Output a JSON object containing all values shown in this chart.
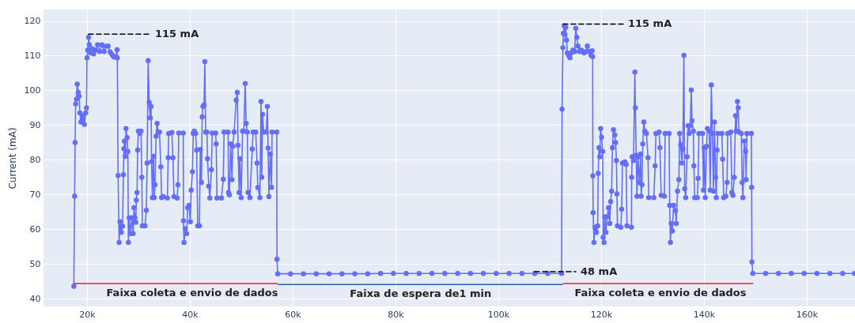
{
  "chart_data": {
    "type": "line",
    "ylabel": "Current (mA)",
    "xlim": [
      11540,
      169390
    ],
    "ylim": [
      37.8,
      123.3
    ],
    "xticks": [
      {
        "value": 20000,
        "label": "20k"
      },
      {
        "value": 40000,
        "label": "40k"
      },
      {
        "value": 60000,
        "label": "60k"
      },
      {
        "value": 80000,
        "label": "80k"
      },
      {
        "value": 100000,
        "label": "100k"
      },
      {
        "value": 120000,
        "label": "120k"
      },
      {
        "value": 140000,
        "label": "140k"
      },
      {
        "value": 160000,
        "label": "160k"
      }
    ],
    "yticks": [
      40,
      50,
      60,
      70,
      80,
      90,
      100,
      110,
      120
    ],
    "grid": true,
    "marker": "circle",
    "line_style": "solid",
    "series": [
      {
        "color": "#636efa",
        "x": [
          17440,
          17590,
          17690,
          17790,
          17950,
          18100,
          18310,
          18460,
          18620,
          18820,
          19080,
          19230,
          19490,
          19740,
          19900,
          20000,
          20150,
          20310,
          20460,
          20670,
          21030,
          21280,
          21640,
          22050,
          22460,
          22920,
          23330,
          23690,
          24100,
          24510,
          24870,
          25230,
          25640,
          25850,
          25900,
          26050,
          26250,
          26410,
          26670,
          26920,
          27080,
          27180,
          27280,
          27440,
          27590,
          27800,
          27950,
          28050,
          28210,
          28460,
          28720,
          28970,
          29130,
          29330,
          29490,
          29590,
          29740,
          29850,
          30000,
          30260,
          30510,
          30670,
          30770,
          31280,
          31540,
          31690,
          31900,
          32100,
          32310,
          32460,
          32560,
          32720,
          32920,
          33080,
          33230,
          33440,
          33640,
          33850,
          34100,
          34360,
          34510,
          34870,
          35640,
          35790,
          35900,
          36510,
          36720,
          36920,
          37540,
          37690,
          37850,
          38720,
          38770,
          38870,
          39130,
          39380,
          39590,
          39850,
          40100,
          40260,
          40510,
          40670,
          40870,
          41130,
          41330,
          41540,
          41850,
          42050,
          42260,
          42410,
          42560,
          42770,
          42920,
          43080,
          43330,
          43440,
          43690,
          43900,
          44200,
          44360,
          45030,
          45130,
          45280,
          46150,
          46510,
          46670,
          47440,
          47540,
          47690,
          47950,
          48200,
          48360,
          48610,
          49020,
          49230,
          49380,
          49590,
          49740,
          50000,
          50260,
          50510,
          50770,
          50970,
          51180,
          51330,
          51690,
          52150,
          52310,
          52820,
          53080,
          53230,
          53640,
          53850,
          54000,
          54150,
          54360,
          54870,
          55080,
          55230,
          55380,
          55640,
          55900,
          56000,
          56920,
          56950,
          57100,
          59600,
          62100,
          64600,
          67100,
          69600,
          72100,
          74600,
          77100,
          79600,
          82100,
          84600,
          87100,
          89600,
          92100,
          94600,
          97100,
          99600,
          102100,
          104600,
          107100,
          109600,
          112310,
          112410,
          112570,
          112670,
          112820,
          112980,
          113130,
          113280,
          113440,
          113690,
          113950,
          114210,
          114510,
          114870,
          115080,
          115280,
          115490,
          115800,
          116150,
          116670,
          117030,
          117330,
          117690,
          118050,
          118260,
          118360,
          118400,
          118450,
          118620,
          118820,
          119080,
          119330,
          119440,
          119590,
          119750,
          119900,
          120100,
          120310,
          120410,
          120570,
          120720,
          120930,
          121180,
          121440,
          121700,
          121850,
          122050,
          122210,
          122410,
          122670,
          122820,
          122980,
          123080,
          123180,
          123850,
          124000,
          124160,
          124620,
          124870,
          125030,
          125900,
          125950,
          126050,
          126310,
          126570,
          126670,
          126820,
          126980,
          127180,
          127440,
          127690,
          127800,
          127950,
          128100,
          128310,
          128510,
          128820,
          129130,
          129280,
          130260,
          130510,
          130670,
          131280,
          131440,
          131690,
          132310,
          132460,
          133230,
          133340,
          133490,
          133640,
          133850,
          134110,
          134460,
          134620,
          134870,
          135130,
          135280,
          135490,
          135690,
          135900,
          136100,
          136260,
          136460,
          136720,
          136920,
          137130,
          137330,
          137540,
          137690,
          137950,
          138050,
          138210,
          138720,
          138870,
          139030,
          139740,
          139900,
          140050,
          140260,
          140510,
          140670,
          141030,
          141230,
          141440,
          141640,
          141850,
          142050,
          142260,
          142410,
          142570,
          142720,
          143490,
          143640,
          143850,
          144260,
          144510,
          144620,
          145230,
          145440,
          145640,
          145900,
          146160,
          146310,
          146520,
          146670,
          146820,
          147280,
          147440,
          147590,
          147850,
          148110,
          148210,
          148360,
          149230,
          149280,
          149340,
          149500,
          152000,
          154500,
          157000,
          159500,
          162000,
          164500,
          167000,
          169300
        ],
        "values": [
          43.6,
          69.5,
          85.0,
          96.1,
          97.5,
          101.8,
          99.4,
          98.3,
          93.5,
          90.9,
          92.0,
          92.7,
          90.2,
          93.5,
          95.0,
          109.4,
          111.6,
          115.3,
          113.1,
          110.8,
          112.0,
          110.5,
          111.6,
          113.1,
          111.2,
          113.1,
          111.2,
          112.7,
          112.8,
          111.1,
          110.3,
          109.6,
          109.7,
          111.7,
          109.4,
          75.5,
          56.2,
          62.2,
          59.1,
          60.9,
          75.7,
          83.2,
          85.4,
          81.0,
          89.0,
          86.4,
          82.4,
          56.2,
          63.3,
          58.8,
          63.3,
          58.8,
          66.2,
          63.3,
          62.0,
          68.4,
          70.6,
          82.8,
          88.3,
          87.6,
          88.3,
          75.0,
          61.0,
          61.0,
          65.5,
          79.1,
          108.6,
          96.5,
          92.1,
          95.4,
          79.5,
          69.1,
          81.0,
          69.1,
          72.8,
          86.8,
          90.5,
          88.0,
          88.0,
          78.0,
          69.1,
          69.4,
          69.0,
          80.6,
          87.6,
          87.9,
          80.6,
          69.4,
          69.0,
          72.8,
          87.7,
          87.7,
          62.5,
          56.2,
          60.2,
          58.8,
          66.2,
          66.9,
          62.2,
          71.3,
          76.6,
          87.6,
          88.3,
          87.6,
          82.8,
          61.0,
          61.0,
          83.0,
          73.5,
          92.4,
          95.4,
          95.8,
          108.3,
          88.0,
          88.0,
          80.3,
          72.4,
          69.0,
          77.2,
          87.7,
          87.7,
          84.6,
          69.0,
          69.0,
          74.4,
          88.0,
          88.0,
          70.6,
          69.9,
          84.6,
          74.3,
          83.9,
          88.0,
          97.2,
          99.4,
          84.2,
          70.6,
          80.3,
          69.1,
          88.3,
          88.3,
          102.0,
          90.5,
          88.0,
          70.6,
          69.1,
          83.1,
          88.0,
          88.0,
          79.1,
          72.0,
          69.1,
          96.8,
          75.0,
          93.1,
          88.0,
          88.0,
          95.4,
          83.4,
          69.4,
          81.7,
          72.1,
          88.0,
          88.0,
          51.4,
          47.2,
          47.2,
          47.2,
          47.2,
          47.2,
          47.2,
          47.2,
          47.2,
          47.3,
          47.3,
          47.3,
          47.3,
          47.3,
          47.3,
          47.3,
          47.3,
          47.3,
          47.3,
          47.3,
          47.3,
          47.3,
          47.3,
          47.3,
          94.6,
          112.3,
          116.4,
          118.6,
          116.0,
          118.2,
          114.5,
          110.8,
          110.1,
          109.4,
          110.8,
          111.6,
          111.2,
          117.9,
          115.3,
          112.8,
          111.2,
          111.6,
          110.8,
          111.2,
          112.8,
          111.2,
          110.1,
          111.4,
          109.7,
          75.4,
          64.8,
          56.2,
          60.6,
          59.1,
          61.0,
          76.1,
          83.5,
          80.9,
          89.0,
          86.5,
          82.4,
          57.7,
          56.2,
          63.6,
          59.1,
          63.6,
          66.2,
          61.7,
          68.0,
          71.0,
          83.5,
          88.7,
          87.2,
          85.0,
          79.8,
          70.2,
          61.0,
          60.6,
          65.8,
          79.1,
          79.4,
          78.7,
          61.0,
          60.6,
          75.0,
          80.9,
          79.8,
          105.3,
          95.0,
          81.3,
          69.5,
          80.9,
          73.5,
          81.7,
          69.5,
          72.8,
          84.6,
          90.9,
          88.3,
          87.6,
          80.6,
          69.1,
          69.1,
          78.3,
          87.6,
          88.0,
          83.5,
          69.8,
          69.5,
          87.6,
          87.6,
          66.9,
          56.2,
          61.7,
          59.5,
          66.9,
          65.4,
          61.7,
          71.0,
          74.3,
          87.6,
          84.3,
          79.1,
          83.1,
          110.1,
          71.7,
          69.1,
          80.9,
          89.8,
          87.6,
          89.8,
          100.1,
          91.3,
          88.3,
          78.3,
          69.1,
          69.1,
          74.7,
          87.6,
          87.6,
          71.3,
          83.5,
          69.1,
          83.9,
          89.0,
          88.3,
          71.3,
          101.6,
          87.6,
          71.0,
          90.9,
          75.0,
          69.1,
          82.8,
          87.6,
          87.6,
          80.2,
          69.1,
          69.5,
          73.5,
          87.6,
          88.0,
          70.6,
          69.8,
          75.0,
          92.7,
          88.3,
          96.8,
          95.0,
          88.0,
          87.6,
          73.5,
          69.1,
          85.4,
          82.4,
          74.3,
          87.6,
          87.6,
          72.1,
          50.6,
          47.3,
          47.3,
          47.3,
          47.3,
          47.3,
          47.3,
          47.3,
          47.3,
          47.3
        ]
      },
      {
        "color": "#000000",
        "line_style": "dashed",
        "marker": "none",
        "x": [
          20300,
          32300
        ],
        "values": [
          116.2,
          116.2
        ]
      },
      {
        "color": "#000000",
        "line_style": "dashed",
        "marker": "none",
        "x": [
          112610,
          124300
        ],
        "values": [
          119.1,
          119.1
        ]
      },
      {
        "color": "#000000",
        "line_style": "dashed",
        "marker": "none",
        "x": [
          107080,
          115080
        ],
        "values": [
          47.8,
          47.8
        ]
      },
      {
        "color": "#ff1a1a",
        "marker": "none",
        "x": [
          17500,
          57000
        ],
        "values": [
          44.4,
          44.4
        ]
      },
      {
        "color": "#1f5fae",
        "marker": "none",
        "x": [
          57200,
          112500
        ],
        "values": [
          44.1,
          44.1
        ]
      },
      {
        "color": "#ff1a1a",
        "marker": "none",
        "x": [
          112700,
          149500
        ],
        "values": [
          44.4,
          44.4
        ]
      }
    ],
    "annotations": [
      {
        "text": "115 mA",
        "x": 32300,
        "y": 116.2
      },
      {
        "text": "115 mA",
        "x": 124300,
        "y": 119.1
      },
      {
        "text": "48 mA",
        "x": 115080,
        "y": 47.8
      },
      {
        "text": "Faixa coleta e envio de dados",
        "x": 40460,
        "y": 44.4
      },
      {
        "text": "Faixa de espera de1 min",
        "x": 84900,
        "y": 44.1
      },
      {
        "text": "Faixa coleta e envio de dados",
        "x": 131540,
        "y": 44.4
      }
    ]
  }
}
